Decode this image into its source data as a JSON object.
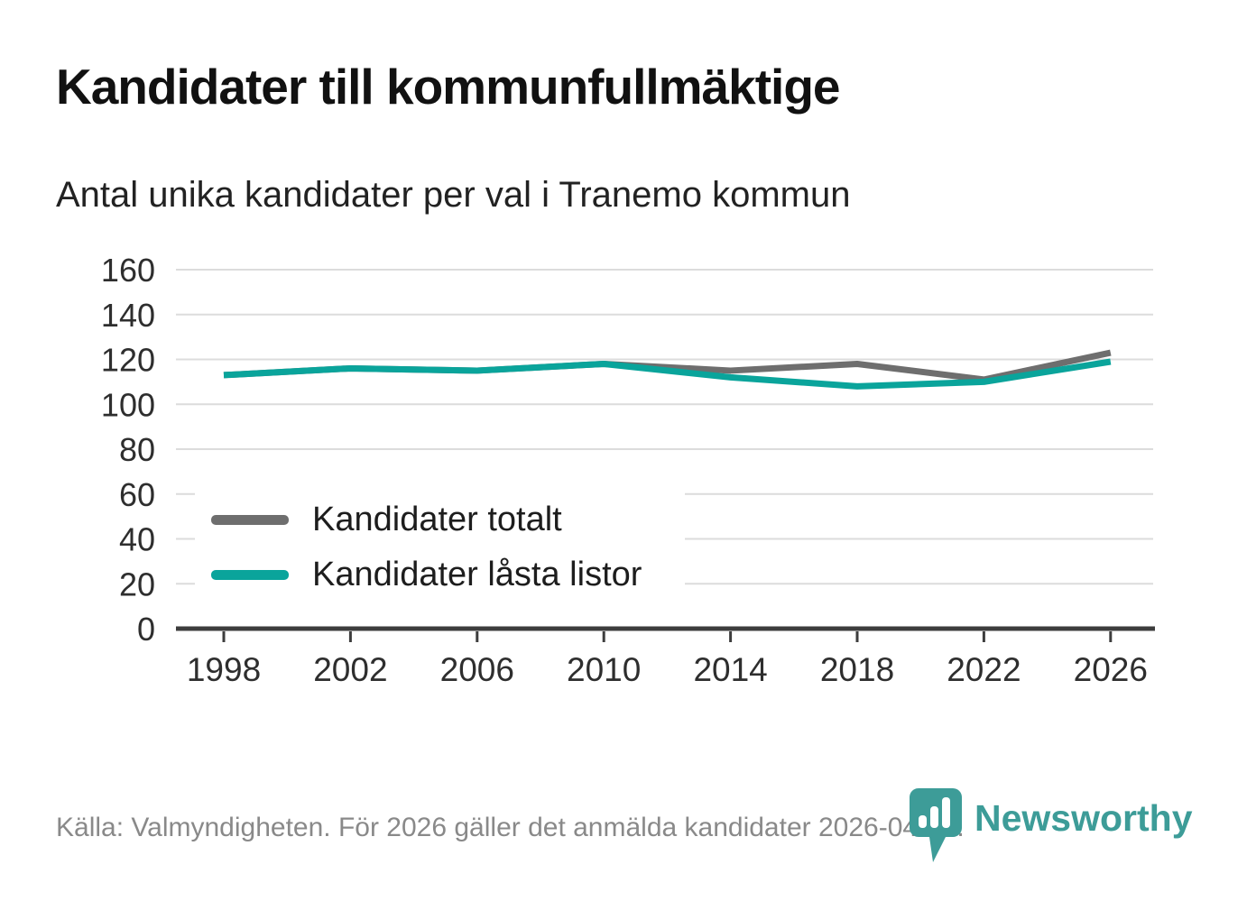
{
  "header": {
    "title": "Kandidater till kommunfullmäktige",
    "subtitle": "Antal unika kandidater per val i Tranemo kommun"
  },
  "legend": {
    "items": [
      {
        "label": "Kandidater totalt",
        "color": "#6e6e6e"
      },
      {
        "label": "Kandidater låsta listor",
        "color": "#0aa49b"
      }
    ]
  },
  "footer": {
    "source": "Källa: Valmyndigheten. För 2026 gäller det anmälda kandidater 2026-04-10.",
    "brand": "Newsworthy"
  },
  "colors": {
    "accent_teal": "#0aa49b",
    "line_gray": "#6e6e6e",
    "grid": "#dcdcdc",
    "axis": "#3d3d3d",
    "text_dark": "#1a1a1a",
    "text_muted": "#898989",
    "brand_teal": "#3d9c98"
  },
  "chart_data": {
    "type": "line",
    "title": "Kandidater till kommunfullmäktige",
    "subtitle": "Antal unika kandidater per val i Tranemo kommun",
    "x": [
      1998,
      2002,
      2006,
      2010,
      2014,
      2018,
      2022,
      2026
    ],
    "series": [
      {
        "name": "Kandidater totalt",
        "color": "#6e6e6e",
        "values": [
          113,
          116,
          115,
          118,
          115,
          118,
          111,
          123
        ]
      },
      {
        "name": "Kandidater låsta listor",
        "color": "#0aa49b",
        "values": [
          113,
          116,
          115,
          118,
          112,
          108,
          110,
          119
        ]
      }
    ],
    "xlabel": "",
    "ylabel": "",
    "ylim": [
      0,
      160
    ],
    "ytick_step": 20,
    "grid": "horizontal",
    "legend_position": "inside-bottom-left",
    "source_note": "Källa: Valmyndigheten. För 2026 gäller det anmälda kandidater 2026-04-10."
  }
}
